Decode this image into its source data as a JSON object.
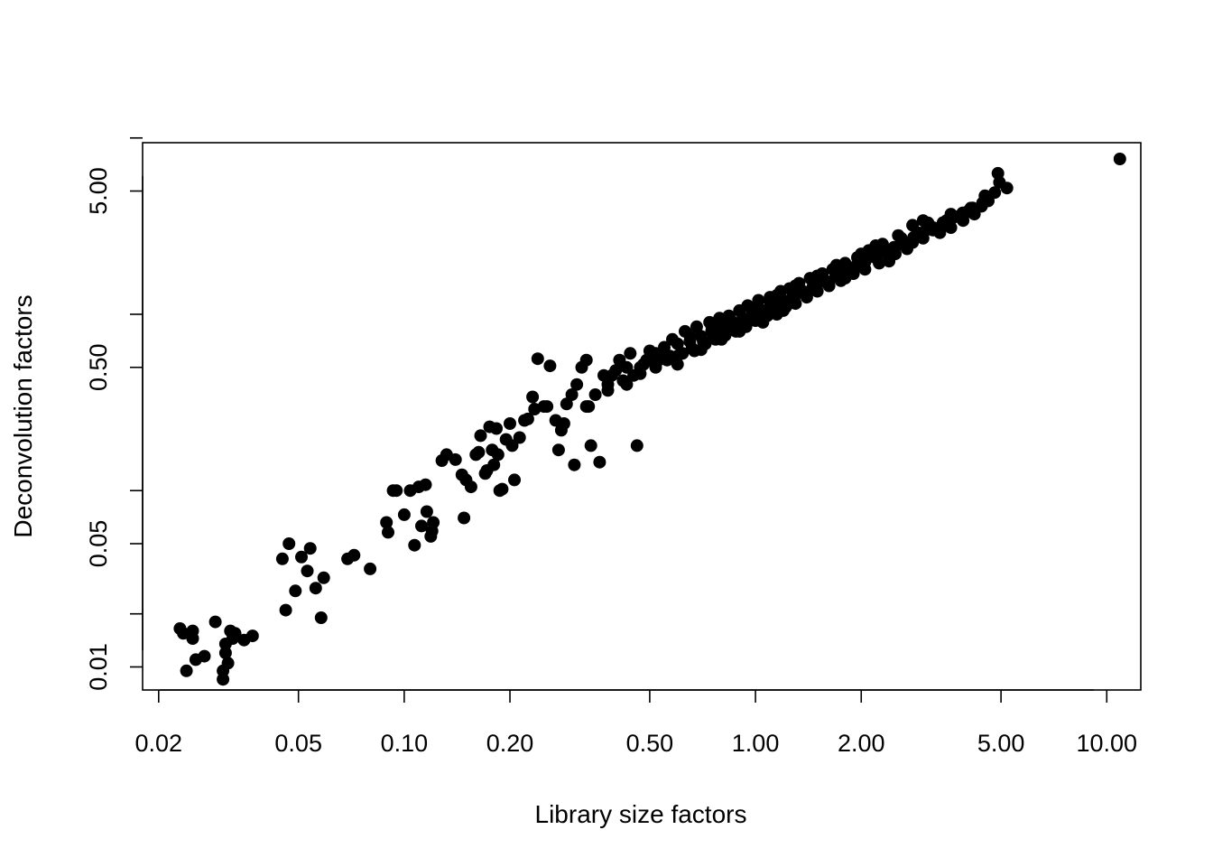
{
  "chart_data": {
    "type": "scatter",
    "title": "",
    "xlabel": "Library size factors",
    "ylabel": "Deconvolution factors",
    "x_scale": "log",
    "y_scale": "log",
    "xlim": [
      0.018,
      12.5
    ],
    "ylim": [
      0.0074,
      9.4
    ],
    "grid": false,
    "legend": "none",
    "point_color": "#000000",
    "x_ticks": [
      {
        "value": 0.02,
        "label": "0.02"
      },
      {
        "value": 0.05,
        "label": "0.05"
      },
      {
        "value": 0.1,
        "label": "0.10"
      },
      {
        "value": 0.2,
        "label": "0.20"
      },
      {
        "value": 0.5,
        "label": "0.50"
      },
      {
        "value": 1.0,
        "label": "1.00"
      },
      {
        "value": 2.0,
        "label": "2.00"
      },
      {
        "value": 5.0,
        "label": "5.00"
      },
      {
        "value": 10.0,
        "label": "10.00"
      }
    ],
    "y_ticks": [
      {
        "value": 0.01,
        "label": "0.01"
      },
      {
        "value": 0.02,
        "label": ""
      },
      {
        "value": 0.05,
        "label": "0.05"
      },
      {
        "value": 0.1,
        "label": ""
      },
      {
        "value": 0.5,
        "label": "0.50"
      },
      {
        "value": 1.0,
        "label": ""
      },
      {
        "value": 5.0,
        "label": "5.00"
      },
      {
        "value": 10.0,
        "label": ""
      }
    ],
    "points": [
      [
        0.023,
        0.0165
      ],
      [
        0.0235,
        0.0155
      ],
      [
        0.024,
        0.0095
      ],
      [
        0.025,
        0.016
      ],
      [
        0.025,
        0.0145
      ],
      [
        0.0255,
        0.011
      ],
      [
        0.027,
        0.0115
      ],
      [
        0.029,
        0.018
      ],
      [
        0.0305,
        0.0095
      ],
      [
        0.0305,
        0.0085
      ],
      [
        0.031,
        0.0135
      ],
      [
        0.031,
        0.012
      ],
      [
        0.0315,
        0.0105
      ],
      [
        0.032,
        0.016
      ],
      [
        0.0325,
        0.0145
      ],
      [
        0.033,
        0.0155
      ],
      [
        0.035,
        0.0142
      ],
      [
        0.037,
        0.015
      ],
      [
        0.045,
        0.041
      ],
      [
        0.046,
        0.021
      ],
      [
        0.047,
        0.05
      ],
      [
        0.049,
        0.027
      ],
      [
        0.051,
        0.042
      ],
      [
        0.053,
        0.035
      ],
      [
        0.054,
        0.047
      ],
      [
        0.056,
        0.028
      ],
      [
        0.058,
        0.019
      ],
      [
        0.059,
        0.032
      ],
      [
        0.069,
        0.041
      ],
      [
        0.072,
        0.043
      ],
      [
        0.08,
        0.036
      ],
      [
        0.089,
        0.066
      ],
      [
        0.09,
        0.058
      ],
      [
        0.093,
        0.1
      ],
      [
        0.095,
        0.1
      ],
      [
        0.1,
        0.073
      ],
      [
        0.104,
        0.1
      ],
      [
        0.107,
        0.049
      ],
      [
        0.11,
        0.105
      ],
      [
        0.112,
        0.063
      ],
      [
        0.115,
        0.108
      ],
      [
        0.116,
        0.076
      ],
      [
        0.119,
        0.055
      ],
      [
        0.12,
        0.059
      ],
      [
        0.121,
        0.066
      ],
      [
        0.128,
        0.148
      ],
      [
        0.132,
        0.16
      ],
      [
        0.14,
        0.15
      ],
      [
        0.146,
        0.123
      ],
      [
        0.148,
        0.07
      ],
      [
        0.15,
        0.115
      ],
      [
        0.155,
        0.105
      ],
      [
        0.16,
        0.16
      ],
      [
        0.163,
        0.165
      ],
      [
        0.165,
        0.205
      ],
      [
        0.17,
        0.125
      ],
      [
        0.172,
        0.13
      ],
      [
        0.175,
        0.23
      ],
      [
        0.178,
        0.17
      ],
      [
        0.18,
        0.14
      ],
      [
        0.183,
        0.225
      ],
      [
        0.185,
        0.16
      ],
      [
        0.187,
        0.1
      ],
      [
        0.19,
        0.102
      ],
      [
        0.195,
        0.195
      ],
      [
        0.2,
        0.24
      ],
      [
        0.203,
        0.18
      ],
      [
        0.206,
        0.115
      ],
      [
        0.213,
        0.2
      ],
      [
        0.22,
        0.25
      ],
      [
        0.225,
        0.255
      ],
      [
        0.232,
        0.34
      ],
      [
        0.235,
        0.29
      ],
      [
        0.24,
        0.56
      ],
      [
        0.25,
        0.3
      ],
      [
        0.255,
        0.3
      ],
      [
        0.26,
        0.51
      ],
      [
        0.27,
        0.25
      ],
      [
        0.275,
        0.17
      ],
      [
        0.28,
        0.22
      ],
      [
        0.285,
        0.24
      ],
      [
        0.29,
        0.31
      ],
      [
        0.3,
        0.35
      ],
      [
        0.305,
        0.14
      ],
      [
        0.31,
        0.4
      ],
      [
        0.32,
        0.5
      ],
      [
        0.33,
        0.55
      ],
      [
        0.335,
        0.3
      ],
      [
        0.34,
        0.18
      ],
      [
        0.35,
        0.35
      ],
      [
        0.36,
        0.145
      ],
      [
        0.37,
        0.45
      ],
      [
        0.38,
        0.4
      ],
      [
        0.39,
        0.45
      ],
      [
        0.4,
        0.48
      ],
      [
        0.41,
        0.55
      ],
      [
        0.42,
        0.42
      ],
      [
        0.43,
        0.5
      ],
      [
        0.44,
        0.6
      ],
      [
        0.45,
        0.45
      ],
      [
        0.46,
        0.18
      ],
      [
        0.47,
        0.5
      ],
      [
        0.48,
        0.52
      ],
      [
        0.49,
        0.55
      ],
      [
        0.5,
        0.62
      ],
      [
        0.52,
        0.6
      ],
      [
        0.53,
        0.55
      ],
      [
        0.55,
        0.65
      ],
      [
        0.57,
        0.58
      ],
      [
        0.58,
        0.72
      ],
      [
        0.6,
        0.68
      ],
      [
        0.62,
        0.6
      ],
      [
        0.63,
        0.8
      ],
      [
        0.65,
        0.7
      ],
      [
        0.67,
        0.62
      ],
      [
        0.68,
        0.85
      ],
      [
        0.7,
        0.75
      ],
      [
        0.72,
        0.68
      ],
      [
        0.74,
        0.9
      ],
      [
        0.75,
        0.8
      ],
      [
        0.77,
        0.72
      ],
      [
        0.79,
        0.95
      ],
      [
        0.8,
        0.85
      ],
      [
        0.82,
        0.76
      ],
      [
        0.84,
        0.98
      ],
      [
        0.86,
        0.88
      ],
      [
        0.88,
        0.8
      ],
      [
        0.9,
        1.05
      ],
      [
        0.92,
        0.95
      ],
      [
        0.94,
        0.85
      ],
      [
        0.96,
        1.1
      ],
      [
        0.98,
        1.0
      ],
      [
        1.0,
        0.92
      ],
      [
        1.02,
        1.2
      ],
      [
        1.05,
        1.05
      ],
      [
        1.08,
        0.98
      ],
      [
        1.1,
        1.25
      ],
      [
        1.12,
        1.12
      ],
      [
        1.15,
        1.0
      ],
      [
        1.18,
        1.35
      ],
      [
        1.2,
        1.2
      ],
      [
        1.22,
        1.1
      ],
      [
        1.25,
        1.4
      ],
      [
        1.28,
        1.3
      ],
      [
        1.3,
        1.15
      ],
      [
        1.33,
        1.5
      ],
      [
        1.36,
        1.35
      ],
      [
        1.4,
        1.25
      ],
      [
        1.43,
        1.6
      ],
      [
        1.46,
        1.45
      ],
      [
        1.5,
        1.35
      ],
      [
        1.55,
        1.7
      ],
      [
        1.58,
        1.55
      ],
      [
        1.62,
        1.45
      ],
      [
        1.66,
        1.8
      ],
      [
        1.7,
        1.65
      ],
      [
        1.75,
        1.55
      ],
      [
        1.8,
        1.95
      ],
      [
        1.85,
        1.8
      ],
      [
        1.9,
        1.7
      ],
      [
        1.95,
        2.1
      ],
      [
        2.0,
        1.95
      ],
      [
        2.05,
        1.8
      ],
      [
        2.1,
        2.3
      ],
      [
        2.2,
        2.1
      ],
      [
        2.25,
        1.95
      ],
      [
        2.3,
        2.5
      ],
      [
        2.4,
        2.3
      ],
      [
        2.5,
        2.2
      ],
      [
        2.55,
        2.8
      ],
      [
        2.6,
        2.5
      ],
      [
        2.7,
        2.35
      ],
      [
        2.8,
        3.2
      ],
      [
        2.9,
        2.9
      ],
      [
        3.0,
        2.7
      ],
      [
        3.1,
        3.3
      ],
      [
        3.2,
        3.0
      ],
      [
        3.35,
        2.9
      ],
      [
        3.5,
        3.4
      ],
      [
        3.6,
        3.1
      ],
      [
        3.8,
        3.6
      ],
      [
        3.9,
        3.4
      ],
      [
        4.1,
        4.0
      ],
      [
        4.2,
        3.7
      ],
      [
        4.4,
        4.1
      ],
      [
        4.6,
        4.4
      ],
      [
        4.8,
        4.9
      ],
      [
        4.9,
        6.3
      ],
      [
        4.95,
        5.6
      ],
      [
        5.2,
        5.2
      ],
      [
        10.9,
        7.6
      ],
      [
        0.33,
        0.3
      ],
      [
        0.38,
        0.37
      ],
      [
        0.43,
        0.4
      ],
      [
        0.47,
        0.46
      ],
      [
        0.52,
        0.5
      ],
      [
        0.56,
        0.55
      ],
      [
        0.6,
        0.58
      ],
      [
        0.66,
        0.64
      ],
      [
        0.71,
        0.7
      ],
      [
        0.76,
        0.74
      ],
      [
        0.81,
        0.8
      ],
      [
        0.87,
        0.85
      ],
      [
        0.93,
        0.9
      ],
      [
        0.99,
        0.97
      ],
      [
        1.06,
        1.03
      ],
      [
        1.13,
        1.1
      ],
      [
        1.21,
        1.17
      ],
      [
        1.29,
        1.25
      ],
      [
        1.38,
        1.34
      ],
      [
        1.48,
        1.43
      ],
      [
        1.58,
        1.53
      ],
      [
        1.69,
        1.63
      ],
      [
        1.8,
        1.74
      ],
      [
        1.92,
        1.86
      ],
      [
        2.05,
        1.98
      ],
      [
        2.18,
        2.11
      ],
      [
        2.33,
        2.25
      ],
      [
        2.48,
        2.4
      ],
      [
        2.65,
        2.56
      ],
      [
        2.82,
        2.73
      ],
      [
        3.01,
        2.91
      ],
      [
        3.21,
        3.1
      ],
      [
        3.42,
        3.31
      ],
      [
        3.65,
        3.53
      ],
      [
        3.89,
        3.76
      ],
      [
        4.15,
        4.01
      ],
      [
        4.43,
        4.28
      ],
      [
        0.55,
        0.6
      ],
      [
        0.6,
        0.52
      ],
      [
        0.65,
        0.76
      ],
      [
        0.7,
        0.63
      ],
      [
        0.75,
        0.86
      ],
      [
        0.8,
        0.72
      ],
      [
        0.85,
        0.93
      ],
      [
        0.9,
        0.8
      ],
      [
        0.95,
        1.12
      ],
      [
        1.0,
        1.05
      ],
      [
        1.05,
        0.9
      ],
      [
        1.1,
        1.18
      ],
      [
        1.15,
        1.28
      ],
      [
        1.2,
        1.05
      ],
      [
        1.3,
        1.45
      ],
      [
        1.4,
        1.3
      ],
      [
        1.5,
        1.65
      ],
      [
        1.6,
        1.5
      ],
      [
        1.7,
        1.9
      ],
      [
        1.8,
        1.6
      ],
      [
        2.0,
        2.2
      ],
      [
        2.2,
        2.45
      ],
      [
        2.4,
        2.0
      ],
      [
        2.6,
        2.7
      ],
      [
        2.8,
        2.55
      ],
      [
        3.0,
        3.4
      ],
      [
        3.3,
        3.05
      ],
      [
        3.6,
        3.7
      ],
      [
        4.0,
        3.8
      ],
      [
        4.5,
        4.7
      ]
    ]
  }
}
